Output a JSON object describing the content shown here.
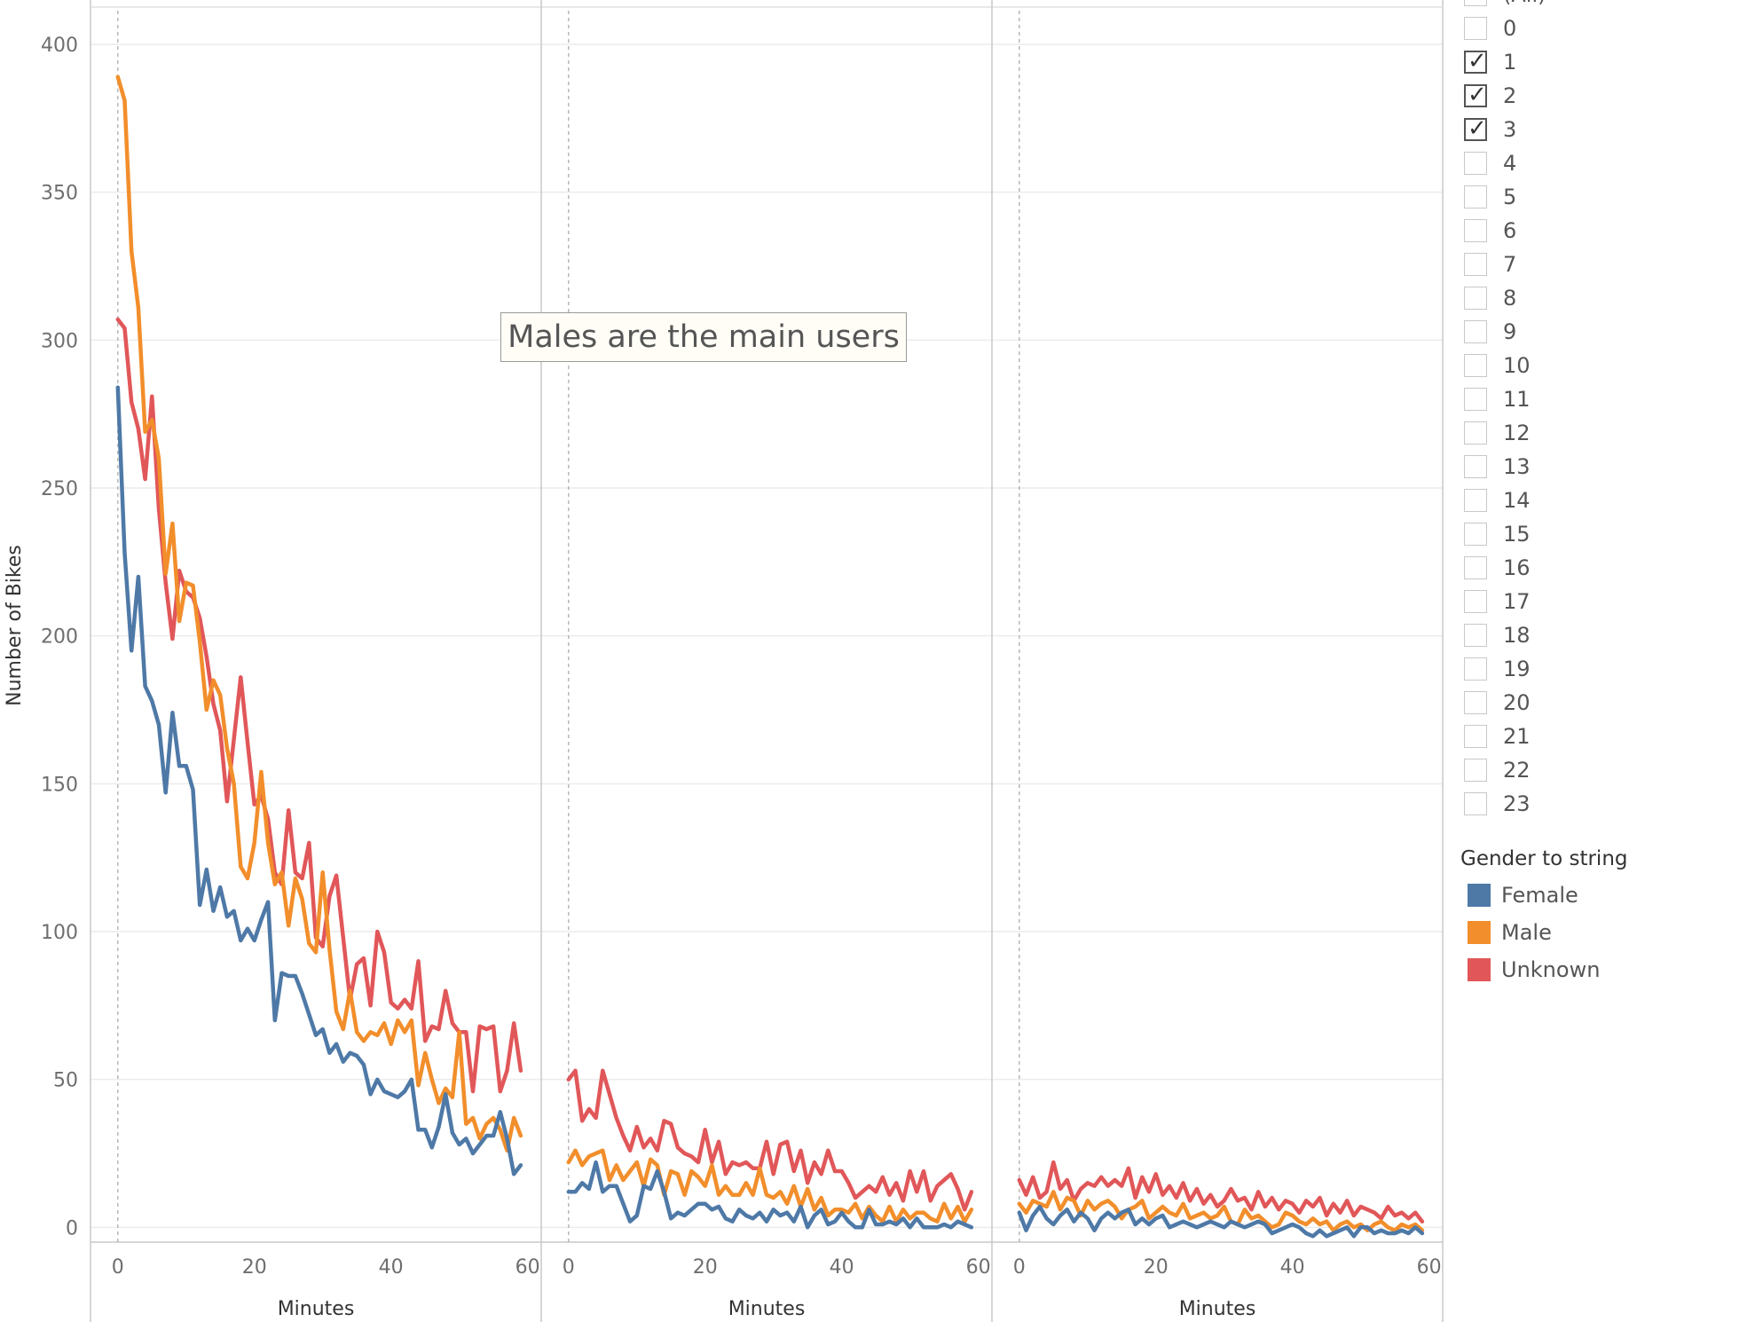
{
  "chart_data": {
    "type": "line",
    "ylabel": "Number of Bikes",
    "xlabel": "Minutes",
    "y_ticks": [
      0,
      50,
      100,
      150,
      200,
      250,
      300,
      350,
      400
    ],
    "x_ticks": [
      0,
      20,
      40,
      60
    ],
    "ylim": [
      -5,
      412
    ],
    "xlim": [
      -4,
      62
    ],
    "grid": true,
    "legend_position": "right",
    "annotation": "Males are the main users",
    "panels": [
      {
        "series": [
          {
            "name": "Female",
            "color": "#4e79a7",
            "values": [
              284,
              228,
              195,
              220,
              183,
              178,
              170,
              147,
              174,
              156,
              156,
              148,
              109,
              121,
              107,
              115,
              105,
              107,
              97,
              101,
              97,
              104,
              110,
              70,
              86,
              85,
              85,
              79,
              72,
              65,
              67,
              59,
              62,
              56,
              59,
              58,
              55,
              45,
              50,
              46,
              45,
              44,
              46,
              50,
              33,
              33,
              27,
              34,
              45,
              32,
              28,
              30,
              25,
              28,
              31,
              31,
              39,
              30,
              18,
              21
            ]
          },
          {
            "name": "Male",
            "color": "#f28e2b",
            "values": [
              389,
              381,
              330,
              311,
              269,
              273,
              260,
              221,
              238,
              205,
              218,
              217,
              198,
              175,
              185,
              180,
              162,
              150,
              122,
              118,
              130,
              154,
              130,
              116,
              120,
              102,
              118,
              111,
              96,
              93,
              120,
              94,
              73,
              67,
              80,
              66,
              63,
              66,
              65,
              69,
              62,
              70,
              66,
              70,
              48,
              59,
              50,
              42,
              47,
              44,
              66,
              35,
              37,
              30,
              35,
              37,
              33,
              26,
              37,
              31
            ]
          },
          {
            "name": "Unknown",
            "color": "#e15759",
            "values": [
              307,
              304,
              279,
              270,
              253,
              281,
              243,
              218,
              199,
              222,
              215,
              213,
              206,
              193,
              177,
              168,
              144,
              165,
              186,
              164,
              143,
              146,
              138,
              120,
              116,
              141,
              120,
              118,
              130,
              98,
              95,
              112,
              119,
              98,
              77,
              89,
              91,
              75,
              100,
              93,
              76,
              74,
              77,
              74,
              90,
              63,
              68,
              67,
              80,
              69,
              66,
              66,
              46,
              68,
              67,
              68,
              46,
              53,
              69,
              53
            ]
          }
        ]
      },
      {
        "series": [
          {
            "name": "Female",
            "color": "#4e79a7",
            "values": [
              12,
              12,
              15,
              13,
              22,
              12,
              14,
              14,
              8,
              2,
              4,
              14,
              13,
              19,
              12,
              3,
              5,
              4,
              6,
              8,
              8,
              6,
              7,
              3,
              2,
              6,
              4,
              3,
              5,
              2,
              6,
              4,
              5,
              2,
              7,
              0,
              4,
              6,
              1,
              2,
              5,
              2,
              0,
              0,
              6,
              1,
              1,
              2,
              1,
              3,
              0,
              3,
              0,
              0,
              0,
              1,
              0,
              2,
              1,
              0
            ]
          },
          {
            "name": "Male",
            "color": "#f28e2b",
            "values": [
              22,
              26,
              21,
              24,
              25,
              26,
              16,
              21,
              16,
              19,
              22,
              14,
              23,
              21,
              11,
              19,
              18,
              11,
              19,
              17,
              14,
              21,
              11,
              14,
              11,
              11,
              15,
              11,
              20,
              11,
              10,
              12,
              8,
              14,
              7,
              13,
              6,
              10,
              4,
              6,
              6,
              5,
              8,
              3,
              7,
              4,
              2,
              7,
              2,
              6,
              3,
              5,
              5,
              3,
              2,
              8,
              3,
              7,
              2,
              6
            ]
          },
          {
            "name": "Unknown",
            "color": "#e15759",
            "values": [
              50,
              53,
              36,
              40,
              37,
              53,
              45,
              37,
              31,
              26,
              34,
              27,
              30,
              26,
              36,
              35,
              27,
              25,
              24,
              22,
              33,
              22,
              29,
              18,
              22,
              21,
              22,
              20,
              20,
              29,
              18,
              28,
              29,
              19,
              26,
              15,
              22,
              18,
              26,
              19,
              19,
              15,
              10,
              12,
              14,
              12,
              17,
              11,
              15,
              9,
              19,
              12,
              19,
              9,
              14,
              16,
              18,
              13,
              6,
              12
            ]
          }
        ]
      },
      {
        "series": [
          {
            "name": "Female",
            "color": "#4e79a7",
            "values": [
              5,
              -1,
              4,
              7,
              3,
              1,
              4,
              6,
              2,
              5,
              3,
              -1,
              3,
              5,
              3,
              5,
              6,
              1,
              3,
              1,
              3,
              4,
              0,
              1,
              2,
              1,
              0,
              1,
              2,
              1,
              0,
              2,
              1,
              0,
              1,
              2,
              1,
              -2,
              -1,
              0,
              1,
              0,
              -2,
              -3,
              -1,
              -3,
              -2,
              -1,
              0,
              -3,
              0,
              0,
              -2,
              -1,
              -2,
              -2,
              -1,
              -2,
              0,
              -2
            ]
          },
          {
            "name": "Male",
            "color": "#f28e2b",
            "values": [
              8,
              5,
              9,
              8,
              7,
              12,
              6,
              10,
              9,
              4,
              9,
              6,
              8,
              9,
              7,
              3,
              6,
              7,
              9,
              3,
              5,
              7,
              5,
              4,
              8,
              3,
              4,
              5,
              3,
              4,
              7,
              2,
              1,
              6,
              3,
              4,
              2,
              0,
              1,
              5,
              4,
              2,
              1,
              3,
              1,
              2,
              -1,
              1,
              2,
              0,
              1,
              -1,
              1,
              2,
              0,
              -1,
              1,
              0,
              1,
              -1
            ]
          },
          {
            "name": "Unknown",
            "color": "#e15759",
            "values": [
              16,
              11,
              17,
              10,
              12,
              22,
              13,
              16,
              9,
              13,
              15,
              14,
              17,
              14,
              16,
              14,
              20,
              10,
              17,
              12,
              18,
              11,
              14,
              10,
              15,
              9,
              13,
              8,
              11,
              7,
              9,
              13,
              9,
              10,
              6,
              12,
              7,
              10,
              6,
              9,
              8,
              5,
              9,
              7,
              10,
              4,
              8,
              5,
              9,
              4,
              7,
              6,
              5,
              3,
              7,
              4,
              5,
              3,
              5,
              2
            ]
          }
        ]
      }
    ]
  },
  "filter": {
    "items": [
      {
        "label": "(All)",
        "checked": false
      },
      {
        "label": "0",
        "checked": false
      },
      {
        "label": "1",
        "checked": true
      },
      {
        "label": "2",
        "checked": true
      },
      {
        "label": "3",
        "checked": true
      },
      {
        "label": "4",
        "checked": false
      },
      {
        "label": "5",
        "checked": false
      },
      {
        "label": "6",
        "checked": false
      },
      {
        "label": "7",
        "checked": false
      },
      {
        "label": "8",
        "checked": false
      },
      {
        "label": "9",
        "checked": false
      },
      {
        "label": "10",
        "checked": false
      },
      {
        "label": "11",
        "checked": false
      },
      {
        "label": "12",
        "checked": false
      },
      {
        "label": "13",
        "checked": false
      },
      {
        "label": "14",
        "checked": false
      },
      {
        "label": "15",
        "checked": false
      },
      {
        "label": "16",
        "checked": false
      },
      {
        "label": "17",
        "checked": false
      },
      {
        "label": "18",
        "checked": false
      },
      {
        "label": "19",
        "checked": false
      },
      {
        "label": "20",
        "checked": false
      },
      {
        "label": "21",
        "checked": false
      },
      {
        "label": "22",
        "checked": false
      },
      {
        "label": "23",
        "checked": false
      }
    ]
  },
  "legend": {
    "title": "Gender to string",
    "items": [
      {
        "label": "Female",
        "color": "#4e79a7"
      },
      {
        "label": "Male",
        "color": "#f28e2b"
      },
      {
        "label": "Unknown",
        "color": "#e15759"
      }
    ]
  }
}
